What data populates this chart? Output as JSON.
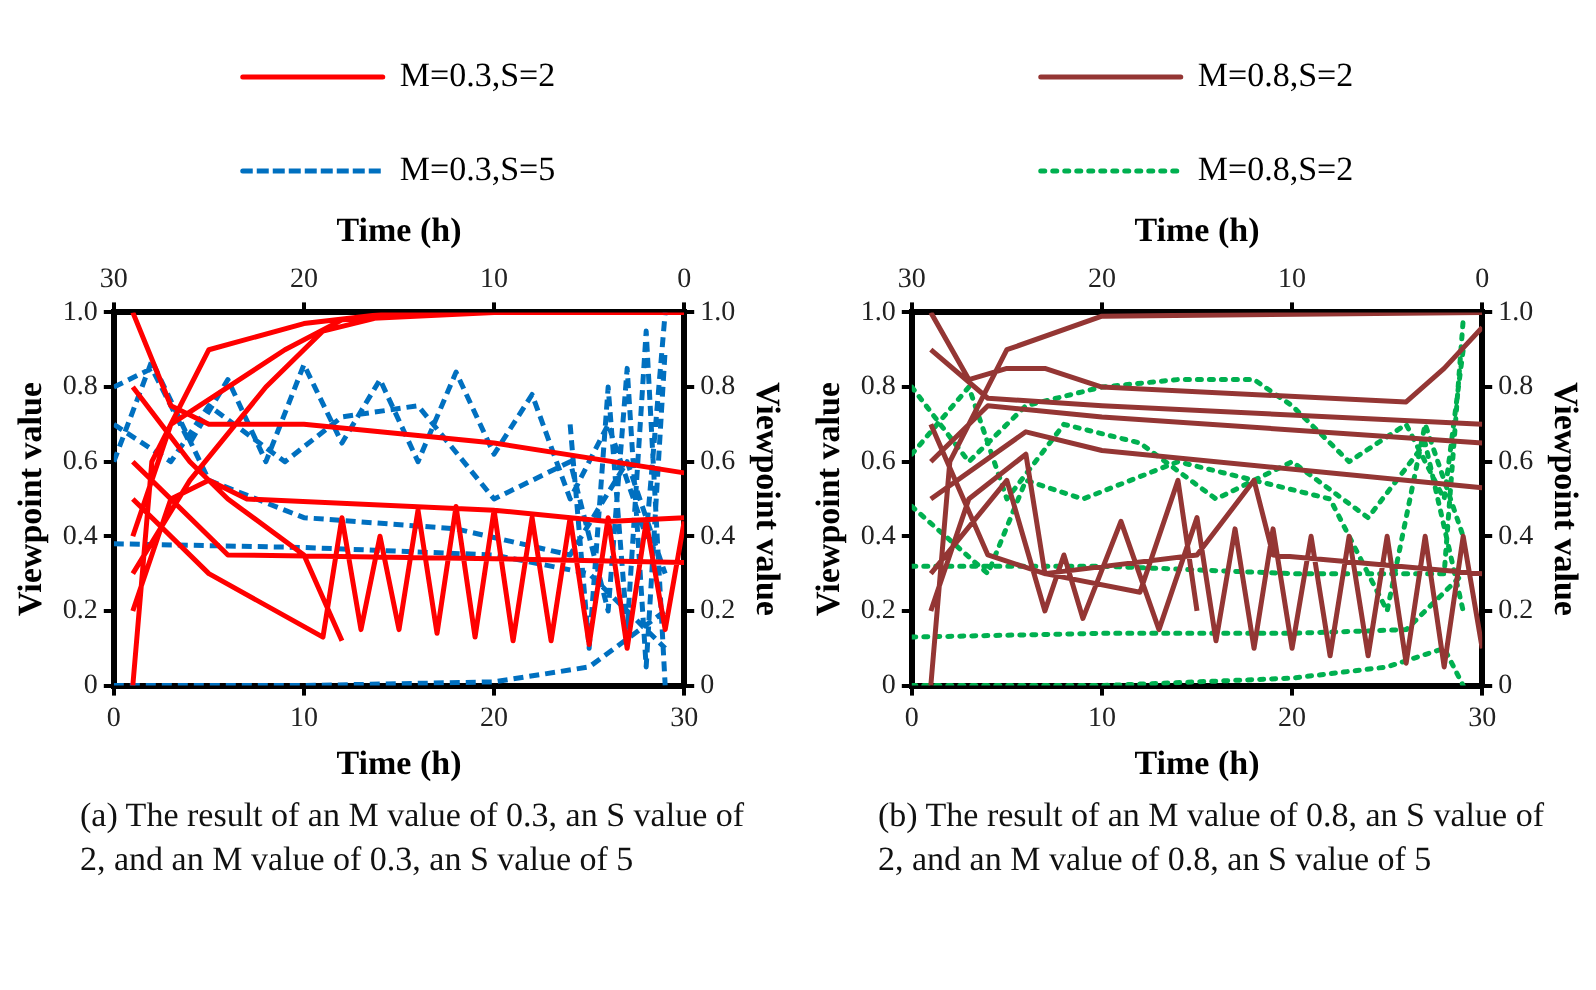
{
  "chart_data": [
    {
      "type": "line",
      "xlabel": "Time (h)",
      "ylabel": "Viewpoint value",
      "y2label": "Viewpoint value",
      "x2label": "Time (h)",
      "xlim": [
        0,
        30
      ],
      "xticks": [
        0,
        10,
        20,
        30
      ],
      "x2lim": [
        30,
        0
      ],
      "x2ticks": [
        30,
        20,
        10,
        0
      ],
      "ylim": [
        0,
        1
      ],
      "yticks": [
        0,
        0.2,
        0.4,
        0.6,
        0.8,
        {
          "value": 1,
          "label": "1.0"
        }
      ],
      "y2lim": [
        0,
        1
      ],
      "y2ticks": [
        0,
        0.2,
        0.4,
        0.6,
        0.8,
        {
          "value": 1,
          "label": "1.0"
        }
      ],
      "grid": false,
      "legend": "top",
      "marker": "none",
      "annotations": [
        "(a) The result of an M value of 0.3, an S value of 2, and an M value of 0.3, an S value of 5"
      ],
      "series": [
        {
          "name": "M=0.3,S=2",
          "color": "#ff0000",
          "line_style": "solid",
          "x": [
            1,
            2,
            5,
            10,
            15,
            30,
            null,
            1,
            3,
            5,
            10,
            20,
            30,
            null,
            1,
            3,
            5,
            7,
            20,
            26,
            30,
            null,
            1,
            5,
            6,
            20,
            30,
            null,
            1,
            5,
            11,
            12,
            13,
            14,
            15,
            16,
            17,
            18,
            19,
            20,
            21,
            22,
            23,
            24,
            25,
            26,
            27,
            28,
            29,
            30,
            null,
            1,
            3,
            6,
            9,
            12,
            20,
            null,
            1,
            4,
            6,
            10,
            12,
            null,
            1,
            4,
            8,
            11,
            15
          ],
          "values": [
            0,
            0.6,
            0.9,
            0.97,
            1,
            1,
            null,
            1,
            0.75,
            0.7,
            0.7,
            0.65,
            0.57,
            null,
            0.2,
            0.5,
            0.55,
            0.5,
            0.47,
            0.44,
            0.45,
            null,
            0.6,
            0.4,
            0.35,
            0.34,
            0.33,
            null,
            0.5,
            0.3,
            0.13,
            0.45,
            0.15,
            0.4,
            0.15,
            0.47,
            0.14,
            0.48,
            0.13,
            0.47,
            0.12,
            0.45,
            0.12,
            0.45,
            0.11,
            0.45,
            0.1,
            0.44,
            0.15,
            0.44,
            null,
            0.4,
            0.7,
            0.8,
            0.9,
            0.98,
            1,
            null,
            0.8,
            0.6,
            0.5,
            0.35,
            0.12,
            null,
            0.3,
            0.55,
            0.8,
            0.95,
            1
          ]
        },
        {
          "name": "M=0.3,S=5",
          "color": "#0070c0",
          "line_style": "dashed",
          "x": [
            0,
            10,
            20,
            25,
            29,
            null,
            0,
            10,
            20,
            25,
            29,
            null,
            0,
            2,
            4,
            6,
            8,
            10,
            12,
            14,
            16,
            18,
            20,
            22,
            24,
            26,
            28,
            29,
            null,
            0,
            3,
            5,
            9,
            12,
            16,
            20,
            24,
            26,
            27,
            28,
            29,
            null,
            0,
            2,
            5,
            10,
            18,
            24,
            27,
            29,
            null,
            24,
            25,
            26,
            27,
            28,
            29
          ],
          "values": [
            0,
            0,
            0.01,
            0.05,
            0.2,
            null,
            0.38,
            0.37,
            0.35,
            0.3,
            0.1,
            null,
            0.8,
            0.85,
            0.65,
            0.82,
            0.6,
            0.86,
            0.65,
            0.82,
            0.6,
            0.84,
            0.62,
            0.78,
            0.5,
            0.7,
            0.4,
            1,
            null,
            0.7,
            0.6,
            0.75,
            0.6,
            0.72,
            0.75,
            0.5,
            0.6,
            0.2,
            0.85,
            0.05,
            0.9,
            null,
            0.6,
            0.87,
            0.55,
            0.45,
            0.42,
            0.35,
            0.6,
            0.3,
            null,
            0.7,
            0.1,
            0.8,
            0.15,
            0.95,
            0
          ]
        }
      ]
    },
    {
      "type": "line",
      "xlabel": "Time (h)",
      "ylabel": "Viewpoint value",
      "y2label": "Viewpoint value",
      "x2label": "Time (h)",
      "xlim": [
        0,
        30
      ],
      "xticks": [
        0,
        10,
        20,
        30
      ],
      "x2lim": [
        30,
        0
      ],
      "x2ticks": [
        30,
        20,
        10,
        0
      ],
      "ylim": [
        0,
        1
      ],
      "yticks": [
        0,
        0.2,
        0.4,
        0.6,
        0.8,
        {
          "value": 1,
          "label": "1.0"
        }
      ],
      "y2lim": [
        0,
        1
      ],
      "y2ticks": [
        0,
        0.2,
        0.4,
        0.6,
        0.8,
        {
          "value": 1,
          "label": "1.0"
        }
      ],
      "grid": false,
      "legend": "top",
      "marker": "none",
      "annotations": [
        "(b) The result of an M value of 0.8, an S value of 2, and an M value of 0.8, an S value of 5"
      ],
      "series": [
        {
          "name": "M=0.8,S=2",
          "color": "#943634",
          "line_style": "solid",
          "x": [
            1,
            2,
            5,
            10,
            30,
            null,
            1,
            3,
            5,
            7,
            10,
            26,
            28,
            30,
            null,
            1,
            4,
            10,
            30,
            null,
            1,
            4,
            10,
            30,
            null,
            1,
            6,
            10,
            30,
            null,
            1,
            5,
            7,
            8,
            9,
            11,
            13,
            15,
            16,
            17,
            18,
            19,
            20,
            21,
            22,
            23,
            24,
            25,
            26,
            27,
            28,
            29,
            30,
            null,
            1,
            4,
            7,
            15,
            18,
            19,
            30,
            null,
            1,
            3,
            6,
            7,
            12,
            14,
            15
          ],
          "values": [
            0,
            0.6,
            0.9,
            0.99,
            1,
            null,
            1,
            0.82,
            0.85,
            0.85,
            0.8,
            0.76,
            0.85,
            0.96,
            null,
            0.9,
            0.77,
            0.75,
            0.7,
            null,
            0.6,
            0.75,
            0.72,
            0.65,
            null,
            0.5,
            0.68,
            0.63,
            0.53,
            null,
            0.3,
            0.55,
            0.2,
            0.35,
            0.18,
            0.44,
            0.15,
            0.45,
            0.12,
            0.42,
            0.1,
            0.42,
            0.1,
            0.4,
            0.08,
            0.4,
            0.08,
            0.4,
            0.06,
            0.4,
            0.05,
            0.4,
            0.1,
            null,
            0.7,
            0.35,
            0.3,
            0.35,
            0.55,
            0.35,
            0.3,
            null,
            0.2,
            0.5,
            0.62,
            0.3,
            0.25,
            0.55,
            0.2
          ]
        },
        {
          "name": "M=0.8,S=2",
          "color": "#00b050",
          "line_style": "dotted",
          "x": [
            0,
            10,
            20,
            25,
            28,
            29,
            null,
            0,
            10,
            20,
            26,
            29,
            null,
            0,
            10,
            20,
            28,
            29,
            null,
            0,
            3,
            6,
            10,
            14,
            18,
            20,
            23,
            26,
            28,
            29,
            null,
            0,
            3,
            5,
            8,
            12,
            16,
            20,
            24,
            27,
            29,
            null,
            0,
            4,
            6,
            9,
            14,
            18,
            22,
            25,
            27,
            29
          ],
          "values": [
            0,
            0,
            0.02,
            0.05,
            0.1,
            0,
            null,
            0.13,
            0.14,
            0.14,
            0.15,
            0.3,
            null,
            0.32,
            0.32,
            0.3,
            0.3,
            0.98,
            null,
            0.8,
            0.6,
            0.75,
            0.8,
            0.82,
            0.82,
            0.75,
            0.6,
            0.7,
            0.5,
            0.9,
            null,
            0.62,
            0.8,
            0.5,
            0.7,
            0.65,
            0.5,
            0.6,
            0.45,
            0.65,
            0.2,
            null,
            0.48,
            0.3,
            0.55,
            0.5,
            0.6,
            0.55,
            0.5,
            0.2,
            0.7,
            0.4
          ]
        }
      ]
    }
  ]
}
